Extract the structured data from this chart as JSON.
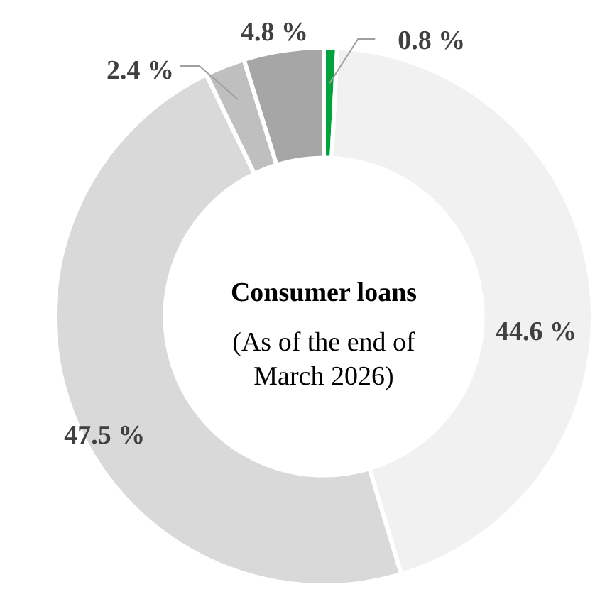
{
  "chart_data": {
    "type": "donut",
    "title": "Consumer loans",
    "subtitle": "(As of the end of March 2026)",
    "categories": [
      null,
      null,
      null,
      null,
      null
    ],
    "values": [
      0.8,
      44.6,
      47.5,
      2.4,
      4.8
    ],
    "colors": [
      "#00a33c",
      "#f1f1f1",
      "#d9d9d9",
      "#bfbfbf",
      "#a6a6a6"
    ],
    "value_labels": [
      "0.8 %",
      "44.6 %",
      "47.5 %",
      "2.4 %",
      "4.8 %"
    ]
  }
}
